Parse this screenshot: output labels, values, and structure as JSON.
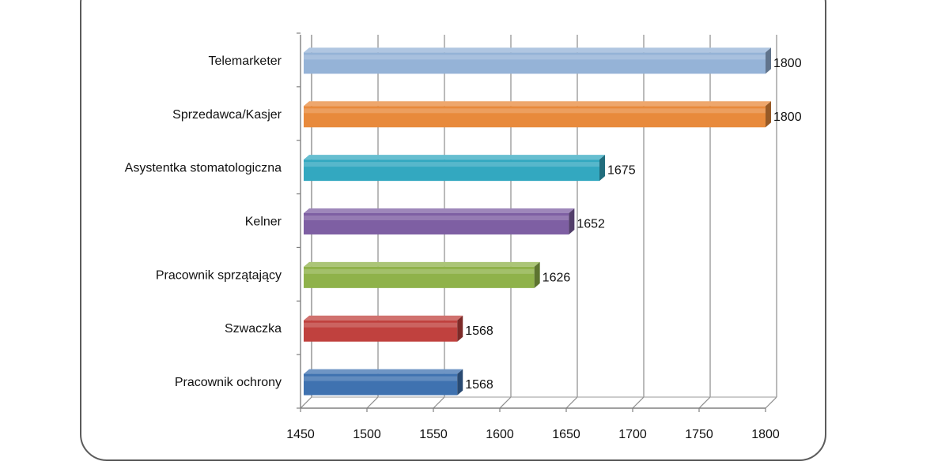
{
  "chart_data": {
    "type": "bar",
    "orientation": "horizontal",
    "categories": [
      "Telemarketer",
      "Sprzedawca/Kasjer",
      "Asystentka stomatologiczna",
      "Kelner",
      "Pracownik sprzątający",
      "Szwaczka",
      "Pracownik ochrony"
    ],
    "values": [
      1800,
      1800,
      1675,
      1652,
      1626,
      1568,
      1568
    ],
    "data_labels": [
      "1800",
      "1800",
      "1675",
      "1652",
      "1626",
      "1568",
      "1568"
    ],
    "colors": [
      "#95b3d7",
      "#e88a3c",
      "#33a8c0",
      "#7e5fa3",
      "#8fb24a",
      "#c0413e",
      "#3f72b0"
    ],
    "xlim": [
      1450,
      1800
    ],
    "x_ticks": [
      1450,
      1500,
      1550,
      1600,
      1650,
      1700,
      1750,
      1800
    ],
    "x_tick_labels": [
      "1450",
      "1500",
      "1550",
      "1600",
      "1650",
      "1700",
      "1750",
      "1800"
    ],
    "title": "",
    "xlabel": "",
    "ylabel": "",
    "grid": "vertical",
    "style": "3d"
  }
}
